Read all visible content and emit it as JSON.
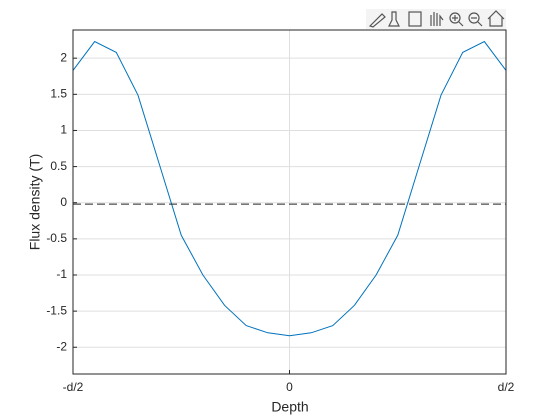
{
  "chart_data": {
    "type": "line",
    "xlabel": "Depth",
    "ylabel": "Flux density (T)",
    "xlim": [
      -0.5,
      0.5
    ],
    "ylim": [
      -2.37,
      2.39
    ],
    "xticks": [
      {
        "value": -0.5,
        "label": "-d/2"
      },
      0,
      {
        "value": 0.5,
        "label": "d/2"
      }
    ],
    "yticks": [
      -2,
      -1.5,
      -1,
      -0.5,
      0,
      0.5,
      1,
      1.5,
      2
    ],
    "grid": true,
    "series": [
      {
        "color": "#0072bd",
        "dash": false,
        "x": [
          -0.5,
          -0.45,
          -0.4,
          -0.35,
          -0.3,
          -0.25,
          -0.2,
          -0.15,
          -0.1,
          -0.05,
          0,
          0.05,
          0.1,
          0.15,
          0.2,
          0.25,
          0.3,
          0.35,
          0.4,
          0.45,
          0.5
        ],
        "values": [
          1.83,
          2.23,
          2.08,
          1.49,
          0.52,
          -0.45,
          -1.0,
          -1.42,
          -1.7,
          -1.8,
          -1.84,
          -1.8,
          -1.7,
          -1.42,
          -1.0,
          -0.45,
          0.52,
          1.49,
          2.08,
          2.23,
          1.83
        ]
      },
      {
        "color": "#262626",
        "dash": true,
        "x": [
          -0.5,
          0.5
        ],
        "values": [
          -0.02,
          -0.02
        ]
      }
    ]
  }
}
